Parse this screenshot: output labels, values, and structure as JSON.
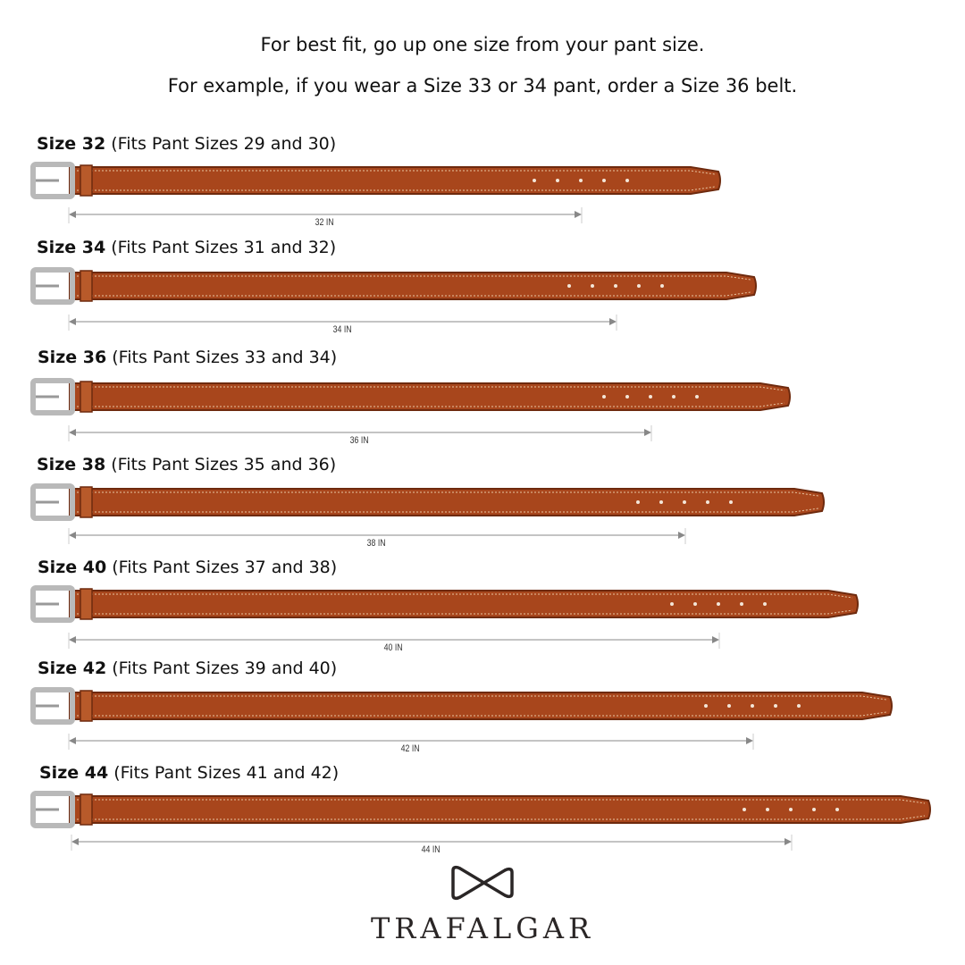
{
  "intro": {
    "line1": "For best fit, go up one size from your pant size.",
    "line2": "For example, if you wear a Size 33 or 34 pant, order a Size 36 belt."
  },
  "sizes": [
    {
      "size": "Size 32",
      "fits": "(Fits Pant Sizes 29 and 30)",
      "measure": "32 IN"
    },
    {
      "size": "Size 34",
      "fits": "(Fits Pant Sizes 31 and 32)",
      "measure": "34 IN"
    },
    {
      "size": "Size 36",
      "fits": "(Fits Pant Sizes 33 and 34)",
      "measure": "36 IN"
    },
    {
      "size": "Size 38",
      "fits": "(Fits Pant Sizes 35 and 36)",
      "measure": "38 IN"
    },
    {
      "size": "Size 40",
      "fits": "(Fits Pant Sizes 37 and 38)",
      "measure": "40 IN"
    },
    {
      "size": "Size 42",
      "fits": "(Fits Pant Sizes 39 and 40)",
      "measure": "42 IN"
    },
    {
      "size": "Size 44",
      "fits": "(Fits Pant Sizes 41 and 42)",
      "measure": "44 IN"
    }
  ],
  "brand": {
    "name": "TRAFALGAR",
    "logo_icon": "bow-tie-icon"
  },
  "colors": {
    "leather": "#a8461c",
    "leather_dark": "#6e2a0e",
    "buckle": "#b9b9b9",
    "arrow": "#888888"
  }
}
